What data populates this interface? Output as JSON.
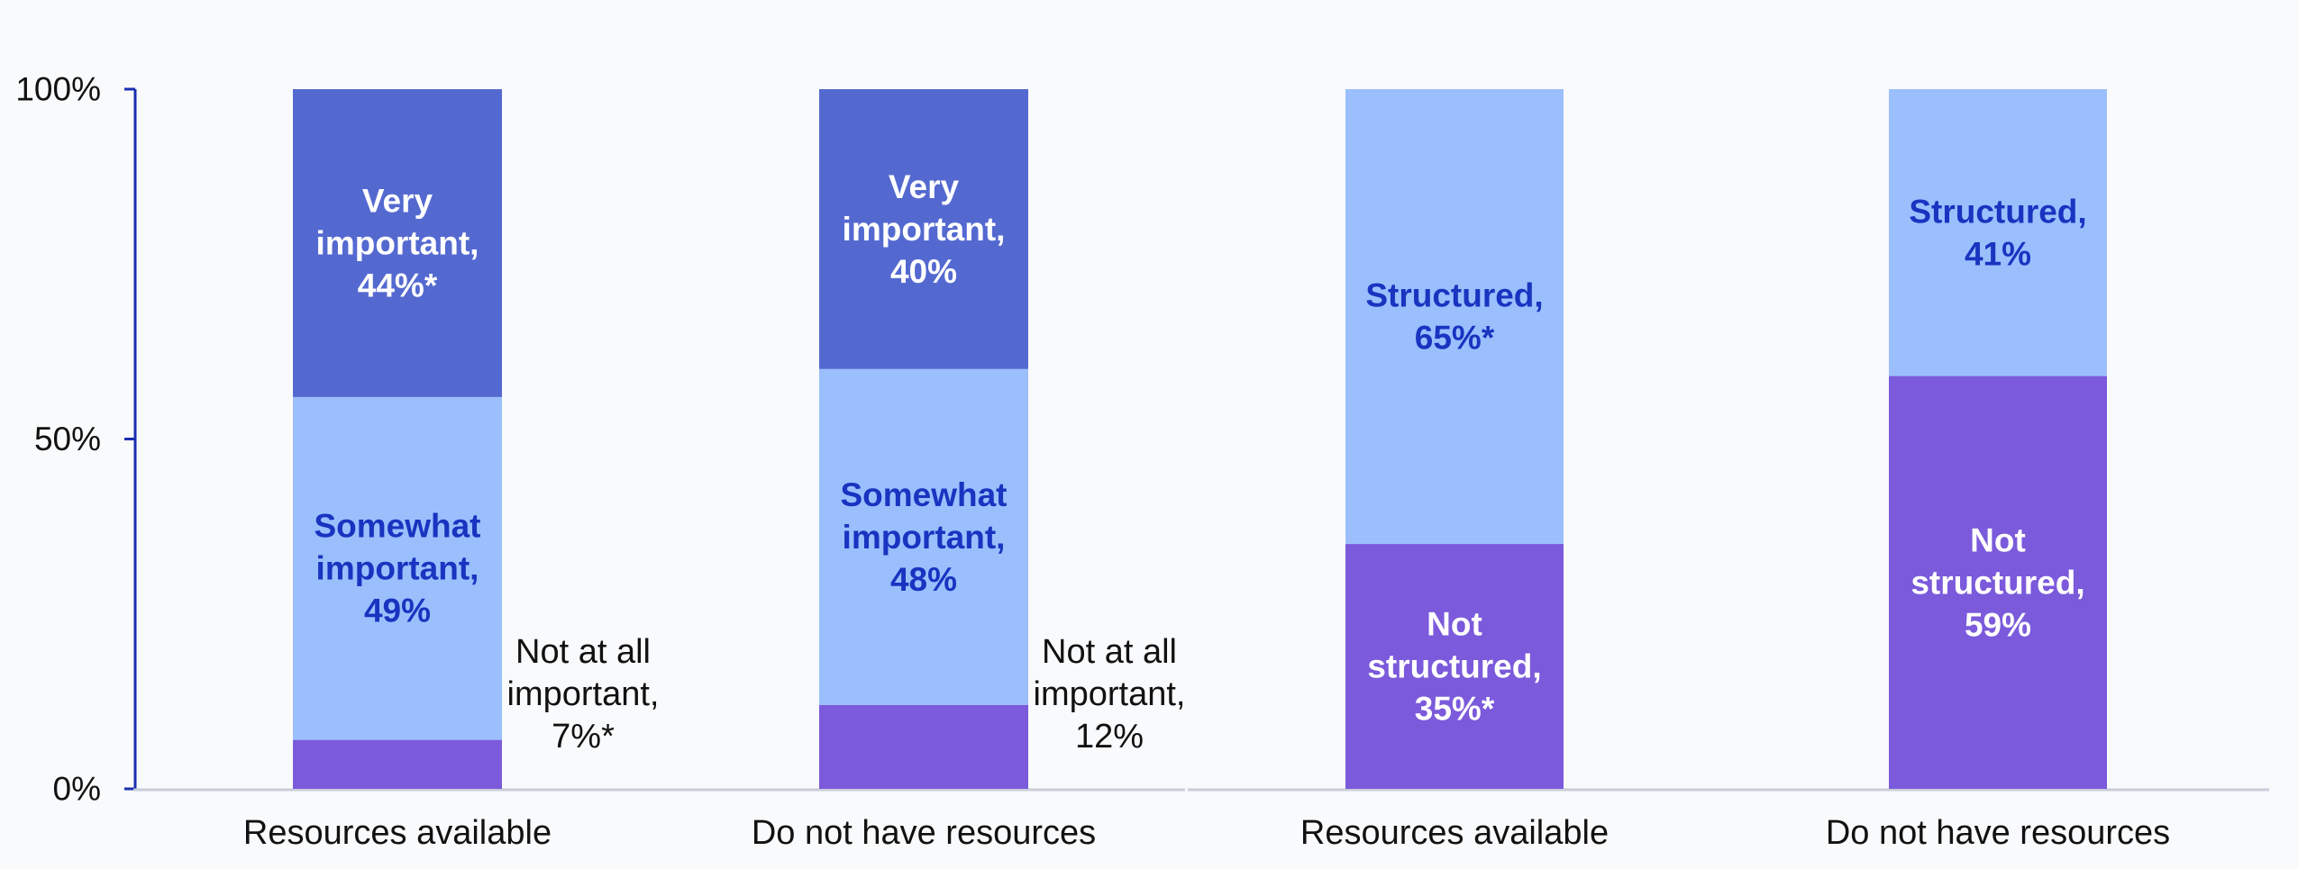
{
  "colors": {
    "background": "#f9fafc",
    "very_important": "#5469d0",
    "somewhat_important": "#9bbffd",
    "not_at_all_important": "#7b5adb",
    "structured": "#9bbffd",
    "not_structured": "#7b5adb",
    "axis": "#1a2eb0",
    "baseline": "#c8cdd8",
    "label_white": "#ffffff",
    "label_blue": "#1834c0",
    "label_black": "#111111"
  },
  "chart_data": [
    {
      "type": "bar",
      "stacked": true,
      "title": "",
      "xlabel": "",
      "ylabel": "",
      "ylim": [
        0,
        100
      ],
      "yticks": [
        {
          "value": 0,
          "label": "0%"
        },
        {
          "value": 50,
          "label": "50%"
        },
        {
          "value": 100,
          "label": "100%"
        }
      ],
      "grid": false,
      "legend": "none",
      "categories": [
        "Resources available",
        "Do not have resources"
      ],
      "series": [
        {
          "key": "not_at_all_important",
          "values": [
            7,
            12
          ],
          "labels": [
            [
              "Not at all",
              "important,",
              "7%*"
            ],
            [
              "Not at all",
              "important,",
              "12%"
            ]
          ],
          "label_color": "label_black",
          "label_outside": true
        },
        {
          "key": "somewhat_important",
          "values": [
            49,
            48
          ],
          "labels": [
            [
              "Somewhat",
              "important,",
              "49%"
            ],
            [
              "Somewhat",
              "important,",
              "48%"
            ]
          ],
          "label_color": "label_blue"
        },
        {
          "key": "very_important",
          "values": [
            44,
            40
          ],
          "labels": [
            [
              "Very",
              "important,",
              "44%*"
            ],
            [
              "Very",
              "important,",
              "40%"
            ]
          ],
          "label_color": "label_white"
        }
      ]
    },
    {
      "type": "bar",
      "stacked": true,
      "title": "",
      "xlabel": "",
      "ylabel": "",
      "ylim": [
        0,
        100
      ],
      "grid": false,
      "legend": "none",
      "categories": [
        "Resources available",
        "Do not have resources"
      ],
      "series": [
        {
          "key": "not_structured",
          "values": [
            35,
            59
          ],
          "labels": [
            [
              "Not",
              "structured,",
              "35%*"
            ],
            [
              "Not",
              "structured,",
              "59%"
            ]
          ],
          "label_color": "label_white"
        },
        {
          "key": "structured",
          "values": [
            65,
            41
          ],
          "labels": [
            [
              "Structured,",
              "65%*"
            ],
            [
              "Structured,",
              "41%"
            ]
          ],
          "label_color": "label_blue"
        }
      ]
    }
  ]
}
